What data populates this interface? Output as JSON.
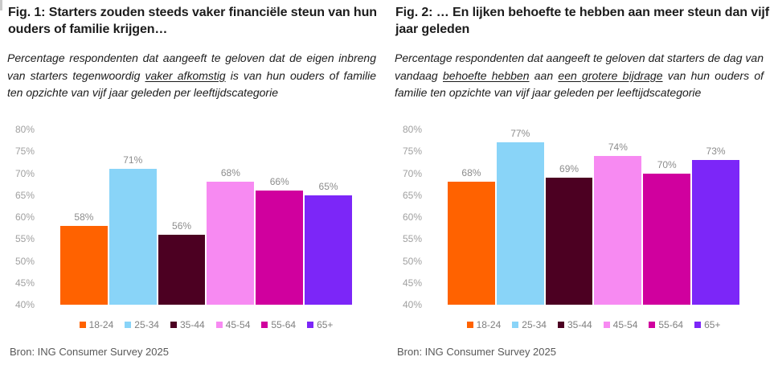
{
  "fig1": {
    "title": "Fig. 1: Starters zouden steeds vaker financiële steun van hun ouders of familie krijgen…",
    "subtitle_segments": [
      {
        "text": "Percentage respondenten dat aangeeft te geloven dat de eigen inbreng van starters tegenwoordig ",
        "underline": false
      },
      {
        "text": "vaker afkomstig",
        "underline": true
      },
      {
        "text": " is van hun ouders of familie ten opzichte van vijf jaar geleden per leeftijdscategorie",
        "underline": false
      }
    ],
    "source": "Bron: ING Consumer Survey 2025"
  },
  "fig2": {
    "title": "Fig. 2: … En lijken behoefte te hebben aan meer steun dan vijf jaar geleden",
    "subtitle_segments": [
      {
        "text": "Percentage respondenten dat aangeeft te geloven dat starters de dag van vandaag ",
        "underline": false
      },
      {
        "text": "behoefte hebben",
        "underline": true
      },
      {
        "text": " aan ",
        "underline": false
      },
      {
        "text": "een grotere bijdrage",
        "underline": true
      },
      {
        "text": " van hun ouders of familie ten opzichte van vijf jaar geleden per leeftijdscategorie",
        "underline": false
      }
    ],
    "source": "Bron: ING Consumer Survey 2025"
  },
  "chart_data": [
    {
      "type": "bar",
      "title": "Fig. 1: Starters zouden steeds vaker financiële steun van hun ouders of familie krijgen…",
      "categories": [
        "18-24",
        "25-34",
        "35-44",
        "45-54",
        "55-64",
        "65+"
      ],
      "values": [
        58,
        71,
        56,
        68,
        66,
        65
      ],
      "value_labels": [
        "58%",
        "71%",
        "56%",
        "68%",
        "66%",
        "65%"
      ],
      "bar_colors": [
        "#FF6200",
        "#89D4F8",
        "#4C0022",
        "#F78AF2",
        "#D0009E",
        "#7C26F8"
      ],
      "xlabel": "",
      "ylabel": "",
      "ylim": [
        40,
        80
      ],
      "ytick_labels": [
        "80%",
        "75%",
        "70%",
        "65%",
        "60%",
        "55%",
        "50%",
        "45%",
        "40%"
      ],
      "grid": false,
      "legend_position": "bottom"
    },
    {
      "type": "bar",
      "title": "Fig. 2: … En lijken behoefte te hebben aan meer steun dan vijf jaar geleden",
      "categories": [
        "18-24",
        "25-34",
        "35-44",
        "45-54",
        "55-64",
        "65+"
      ],
      "values": [
        68,
        77,
        69,
        74,
        70,
        73
      ],
      "value_labels": [
        "68%",
        "77%",
        "69%",
        "74%",
        "70%",
        "73%"
      ],
      "bar_colors": [
        "#FF6200",
        "#89D4F8",
        "#4C0022",
        "#F78AF2",
        "#D0009E",
        "#7C26F8"
      ],
      "xlabel": "",
      "ylabel": "",
      "ylim": [
        40,
        80
      ],
      "ytick_labels": [
        "80%",
        "75%",
        "70%",
        "65%",
        "60%",
        "55%",
        "50%",
        "45%",
        "40%"
      ],
      "grid": false,
      "legend_position": "bottom"
    }
  ]
}
